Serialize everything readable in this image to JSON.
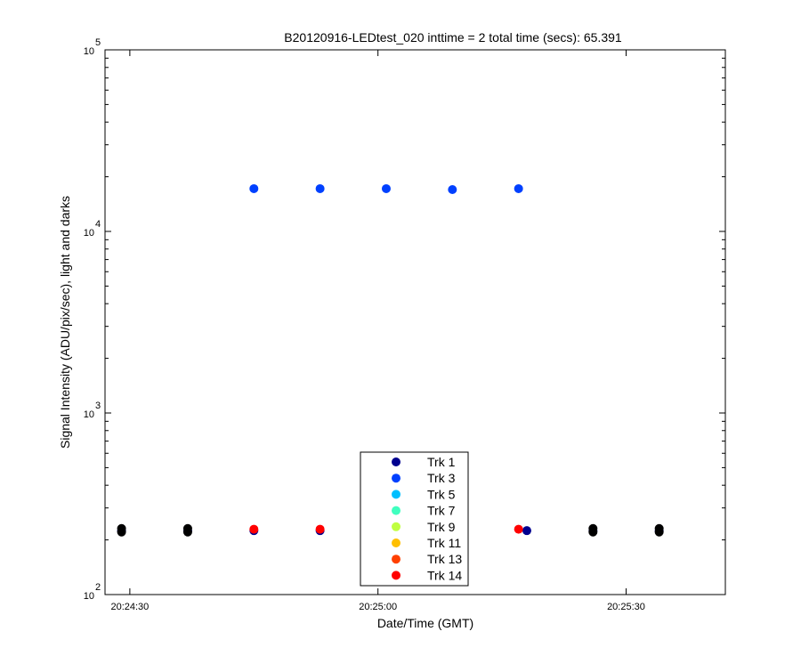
{
  "chart_data": {
    "type": "scatter",
    "title": "B20120916-LEDtest_020 inttime = 2 total time (secs): 65.391",
    "xlabel": "Date/Time (GMT)",
    "ylabel": "Signal Intensity (ADU/pix/sec), light and darks",
    "yscale": "log",
    "xlim": [
      "20:24:27",
      "20:25:42"
    ],
    "ylim": [
      100,
      100000
    ],
    "x_ticks": [
      "20:24:30",
      "20:25:00",
      "20:25:30"
    ],
    "y_ticks": [
      {
        "value": 100,
        "base": "10",
        "exp": "2"
      },
      {
        "value": 1000,
        "base": "10",
        "exp": "3"
      },
      {
        "value": 10000,
        "base": "10",
        "exp": "4"
      },
      {
        "value": 100000,
        "base": "10",
        "exp": "5"
      }
    ],
    "grid": false,
    "legend_position": "bottom-center",
    "series": [
      {
        "name": "Trk 1",
        "color": "#00008f",
        "points": [
          {
            "x": "20:24:29",
            "y": 225
          },
          {
            "x": "20:24:37",
            "y": 225
          },
          {
            "x": "20:24:45",
            "y": 225
          },
          {
            "x": "20:24:53",
            "y": 225
          },
          {
            "x": "20:25:18",
            "y": 225
          },
          {
            "x": "20:25:26",
            "y": 225
          },
          {
            "x": "20:25:34",
            "y": 225
          }
        ]
      },
      {
        "name": "Trk 3",
        "color": "#0040ff",
        "points": [
          {
            "x": "20:24:45",
            "y": 17200
          },
          {
            "x": "20:24:53",
            "y": 17200
          },
          {
            "x": "20:25:01",
            "y": 17200
          },
          {
            "x": "20:25:09",
            "y": 17000
          },
          {
            "x": "20:25:17",
            "y": 17200
          }
        ]
      },
      {
        "name": "Trk 5",
        "color": "#00bfff",
        "points": []
      },
      {
        "name": "Trk 7",
        "color": "#40ffbf",
        "points": []
      },
      {
        "name": "Trk 9",
        "color": "#bfff40",
        "points": []
      },
      {
        "name": "Trk 11",
        "color": "#ffbf00",
        "points": []
      },
      {
        "name": "Trk 13",
        "color": "#ff4000",
        "points": []
      },
      {
        "name": "Trk 14",
        "color": "#ff0000",
        "points": [
          {
            "x": "20:24:45",
            "y": 229
          },
          {
            "x": "20:24:53",
            "y": 229
          },
          {
            "x": "20:25:17",
            "y": 229
          }
        ]
      },
      {
        "name": "",
        "color": "#000000",
        "points": [
          {
            "x": "20:24:29",
            "y": 226
          },
          {
            "x": "20:24:37",
            "y": 226
          },
          {
            "x": "20:25:26",
            "y": 226
          },
          {
            "x": "20:25:34",
            "y": 226
          }
        ]
      }
    ]
  }
}
